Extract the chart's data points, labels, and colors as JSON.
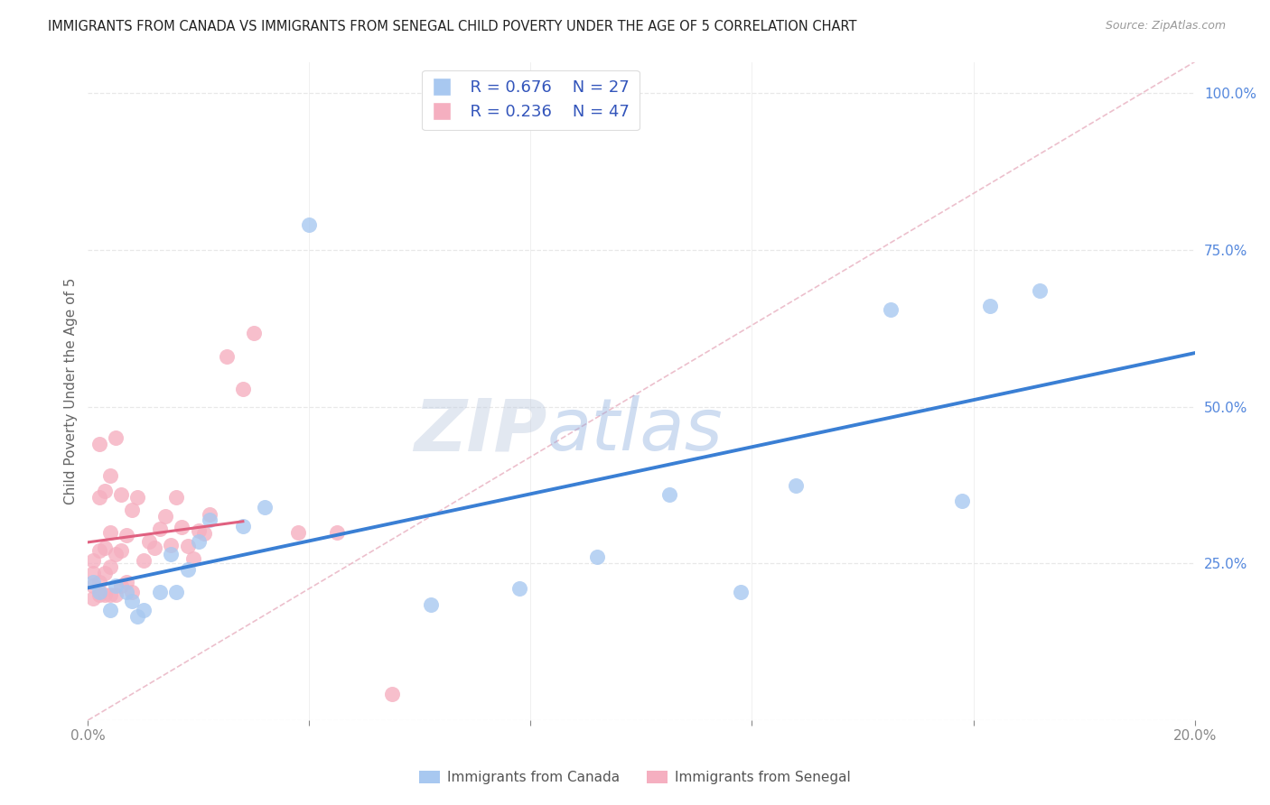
{
  "title": "IMMIGRANTS FROM CANADA VS IMMIGRANTS FROM SENEGAL CHILD POVERTY UNDER THE AGE OF 5 CORRELATION CHART",
  "source": "Source: ZipAtlas.com",
  "ylabel": "Child Poverty Under the Age of 5",
  "xlim": [
    0.0,
    0.2
  ],
  "ylim": [
    0.0,
    1.05
  ],
  "watermark": "ZIPatlas",
  "legend_R1": "R = 0.676",
  "legend_N1": "N = 27",
  "legend_R2": "R = 0.236",
  "legend_N2": "N = 47",
  "canada_color": "#a8c8f0",
  "senegal_color": "#f5afc0",
  "canada_line_color": "#3a7fd4",
  "senegal_line_color": "#e06080",
  "diag_line_color": "#e8b0c0",
  "background_color": "#ffffff",
  "grid_color": "#e8e8e8",
  "ytick_color": "#5588dd",
  "xtick_color": "#888888",
  "canada_x": [
    0.001,
    0.002,
    0.004,
    0.005,
    0.007,
    0.008,
    0.009,
    0.01,
    0.013,
    0.015,
    0.016,
    0.018,
    0.02,
    0.022,
    0.028,
    0.032,
    0.04,
    0.062,
    0.078,
    0.092,
    0.105,
    0.118,
    0.128,
    0.145,
    0.158,
    0.163,
    0.172
  ],
  "canada_y": [
    0.22,
    0.205,
    0.175,
    0.215,
    0.205,
    0.19,
    0.165,
    0.175,
    0.205,
    0.265,
    0.205,
    0.24,
    0.285,
    0.32,
    0.31,
    0.34,
    0.79,
    0.185,
    0.21,
    0.26,
    0.36,
    0.205,
    0.375,
    0.655,
    0.35,
    0.66,
    0.685
  ],
  "senegal_x": [
    0.001,
    0.001,
    0.001,
    0.001,
    0.002,
    0.002,
    0.002,
    0.002,
    0.002,
    0.003,
    0.003,
    0.003,
    0.003,
    0.004,
    0.004,
    0.004,
    0.004,
    0.005,
    0.005,
    0.005,
    0.006,
    0.006,
    0.006,
    0.007,
    0.007,
    0.008,
    0.008,
    0.009,
    0.01,
    0.011,
    0.012,
    0.013,
    0.014,
    0.015,
    0.016,
    0.017,
    0.018,
    0.019,
    0.02,
    0.021,
    0.022,
    0.025,
    0.028,
    0.03,
    0.038,
    0.045,
    0.055
  ],
  "senegal_y": [
    0.195,
    0.215,
    0.235,
    0.255,
    0.2,
    0.22,
    0.27,
    0.355,
    0.44,
    0.2,
    0.235,
    0.275,
    0.365,
    0.2,
    0.245,
    0.3,
    0.39,
    0.2,
    0.265,
    0.45,
    0.215,
    0.27,
    0.36,
    0.22,
    0.295,
    0.205,
    0.335,
    0.355,
    0.255,
    0.285,
    0.275,
    0.305,
    0.325,
    0.28,
    0.355,
    0.308,
    0.278,
    0.258,
    0.302,
    0.298,
    0.328,
    0.58,
    0.528,
    0.618,
    0.3,
    0.3,
    0.042
  ]
}
